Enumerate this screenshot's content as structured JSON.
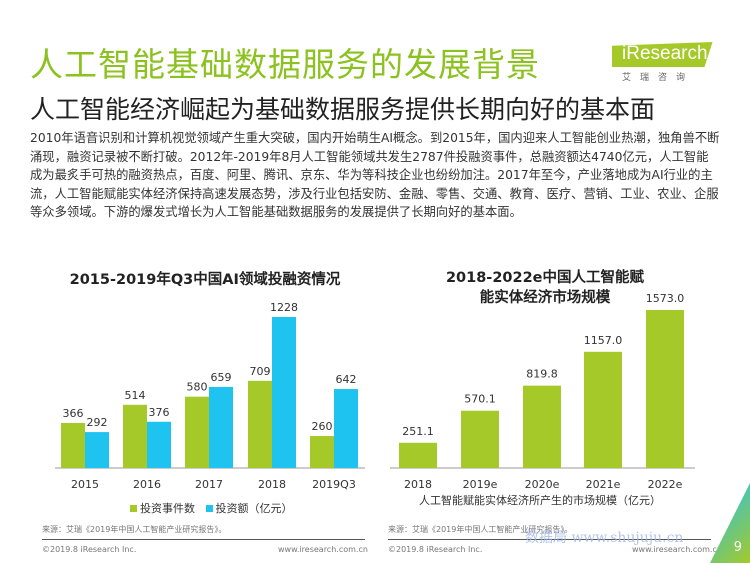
{
  "header": {
    "title": "人工智能基础数据服务的发展背景",
    "subtitle": "人工智能经济崛起为基础数据服务提供长期向好的基本面",
    "logo": "iResearch",
    "logo_cn": "艾瑞咨询"
  },
  "body_text": "2010年语音识别和计算机视觉领域产生重大突破，国内开始萌生AI概念。到2015年，国内迎来人工智能创业热潮，独角兽不断涌现，融资记录被不断打破。2012年-2019年8月人工智能领域共发生2787件投融资事件，总融资额达4740亿元，人工智能成为最炙手可热的融资热点，百度、阿里、腾讯、京东、华为等科技企业也纷纷加注。2017年至今，产业落地成为AI行业的主流，人工智能赋能实体经济保持高速发展态势，涉及行业包括安防、金融、零售、交通、教育、医疗、营销、工业、农业、企服等众多领域。下游的爆发式增长为人工智能基础数据服务的发展提供了长期向好的基本面。",
  "colors": {
    "green": "#a6c92a",
    "blue": "#1ec3f0",
    "title": "#8cc21f"
  },
  "chart_data": [
    {
      "type": "bar",
      "title": "2015-2019年Q3中国AI领域投融资情况",
      "categories": [
        "2015",
        "2016",
        "2017",
        "2018",
        "2019Q3"
      ],
      "series": [
        {
          "name": "投资事件数",
          "values": [
            366,
            514,
            580,
            709,
            260
          ]
        },
        {
          "name": "投资额（亿元）",
          "values": [
            292,
            376,
            659,
            1228,
            642
          ]
        }
      ],
      "legend": "bottom"
    },
    {
      "type": "bar",
      "title": "2018-2022e中国人工智能赋能实体经济市场规模",
      "categories": [
        "2018",
        "2019e",
        "2020e",
        "2021e",
        "2022e"
      ],
      "series": [
        {
          "values": [
            251.1,
            570.1,
            819.8,
            1157.0,
            1573.0
          ]
        }
      ],
      "xlabel": "人工智能赋能实体经济所产生的市场规模（亿元）"
    }
  ],
  "footer": {
    "source": "来源：艾瑞《2019年中国人工智能产业研究报告》。",
    "copyright": "©2019.8 iResearch Inc.",
    "url": "www.iresearch.com.cn",
    "page": "9",
    "watermark": "数据局 www.shujuju.cn"
  }
}
